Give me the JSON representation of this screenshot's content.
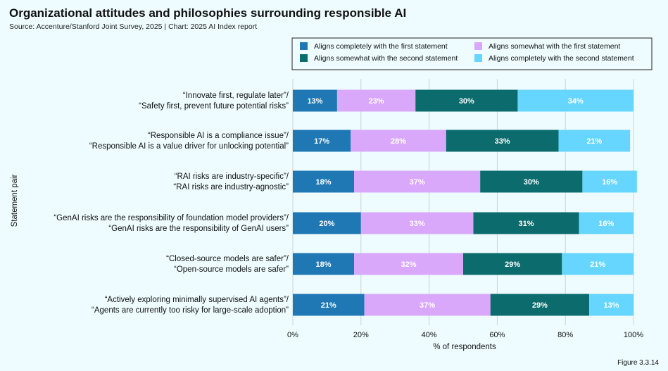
{
  "chart_data": {
    "type": "bar",
    "orientation": "horizontal",
    "stacked": true,
    "title": "Organizational attitudes and philosophies surrounding responsible AI",
    "subtitle": "Source: Accenture/Stanford Joint Survey, 2025 | Chart: 2025 AI Index report",
    "xlabel": "% of respondents",
    "ylabel": "Statement pair",
    "xlim": [
      0,
      100
    ],
    "xticks": [
      0,
      20,
      40,
      60,
      80,
      100
    ],
    "xtick_labels": [
      "0%",
      "20%",
      "40%",
      "60%",
      "80%",
      "100%"
    ],
    "grid": true,
    "legend_position": "top-right",
    "categories": [
      [
        "“Innovate first, regulate later”/",
        "“Safety first, prevent future potential risks”"
      ],
      [
        "“Responsible AI is a compliance issue”/",
        "“Responsible AI is a value driver for unlocking potential”"
      ],
      [
        "“RAI risks are industry-specific”/",
        "“RAI risks are industry-agnostic”"
      ],
      [
        "“GenAI risks are the responsibility of foundation model providers”/",
        "“GenAI risks are the responsibility of GenAI users”"
      ],
      [
        "“Closed-source models are safer”/",
        "“Open-source models are safer”"
      ],
      [
        "“Actively exploring minimally supervised AI agents”/",
        "“Agents are currently too risky for large-scale adoption”"
      ]
    ],
    "series": [
      {
        "name": "Aligns completely with the first statement",
        "color": "#1f78b4",
        "label_color": "#ffffff",
        "values": [
          13,
          17,
          18,
          20,
          18,
          21
        ]
      },
      {
        "name": "Aligns somewhat with the first statement",
        "color": "#d9a8fb",
        "label_color": "#ffffff",
        "values": [
          23,
          28,
          37,
          33,
          32,
          37
        ]
      },
      {
        "name": "Aligns somewhat with the second statement",
        "color": "#0b6b6d",
        "label_color": "#ffffff",
        "values": [
          30,
          33,
          30,
          31,
          29,
          29
        ]
      },
      {
        "name": "Aligns completely with the second statement",
        "color": "#66d6ff",
        "label_color": "#ffffff",
        "values": [
          34,
          21,
          16,
          16,
          21,
          13
        ]
      }
    ],
    "legend_order": [
      0,
      2,
      1,
      3
    ]
  },
  "footer": {
    "figure_label": "Figure 3.3.14"
  }
}
